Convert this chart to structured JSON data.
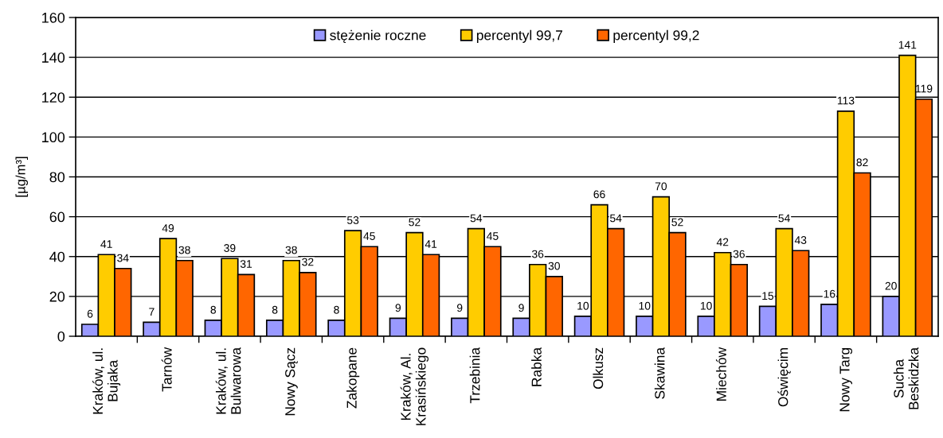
{
  "chart_data": {
    "type": "bar",
    "ylabel": "[µg/m³]",
    "categories": [
      "Kraków, ul.\nBujaka",
      "Tarnów",
      "Kraków, ul.\nBulwarowa",
      "Nowy Sącz",
      "Zakopane",
      "Kraków, Al.\nKrasińskiego",
      "Trzebinia",
      "Rabka",
      "Olkusz",
      "Skawina",
      "Miechów",
      "Oświęcim",
      "Nowy Targ",
      "Sucha\nBeskidzka"
    ],
    "series": [
      {
        "name": "stężenie roczne",
        "color": "#9999ff",
        "values": [
          6,
          7,
          8,
          8,
          8,
          9,
          9,
          9,
          10,
          10,
          10,
          15,
          16,
          20
        ]
      },
      {
        "name": "percentyl 99,7",
        "color": "#ffcc00",
        "values": [
          41,
          49,
          39,
          38,
          53,
          52,
          54,
          36,
          66,
          70,
          42,
          54,
          113,
          141
        ]
      },
      {
        "name": "percentyl 99,2",
        "color": "#ff6600",
        "values": [
          34,
          38,
          31,
          32,
          45,
          41,
          45,
          30,
          54,
          52,
          36,
          43,
          82,
          119
        ]
      }
    ],
    "ylim": [
      0,
      160
    ],
    "yticks": [
      0,
      20,
      40,
      60,
      80,
      100,
      120,
      140,
      160
    ],
    "grid": "y",
    "legend": "top",
    "data_labels": true
  }
}
